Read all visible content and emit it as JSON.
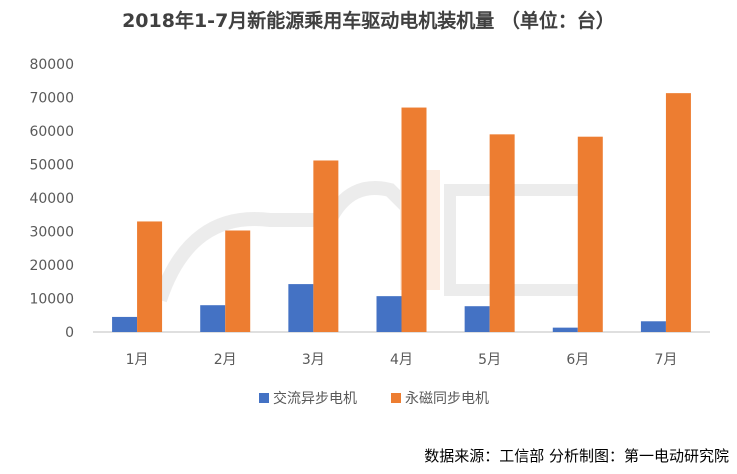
{
  "colors": {
    "ac": "#4472c4",
    "pm": "#ed7d31",
    "axis": "#bfbfbf",
    "text": "#595959"
  },
  "chart_data": {
    "type": "bar",
    "title": "2018年1-7月新能源乘用车驱动电机装机量 （单位：台）",
    "categories": [
      "1月",
      "2月",
      "3月",
      "4月",
      "5月",
      "6月",
      "7月"
    ],
    "series": [
      {
        "name": "交流异步电机",
        "values": [
          4500,
          8000,
          14300,
          10700,
          7700,
          1300,
          3200
        ]
      },
      {
        "name": "永磁同步电机",
        "values": [
          33000,
          30300,
          51200,
          67000,
          59000,
          58300,
          71300
        ]
      }
    ],
    "ylim": [
      0,
      80000
    ],
    "yticks": [
      0,
      10000,
      20000,
      30000,
      40000,
      50000,
      60000,
      70000,
      80000
    ],
    "xlabel": "",
    "ylabel": "",
    "grid": false,
    "legend": "bottom"
  },
  "source_text": "数据来源：工信部  分析制图：第一电动研究院"
}
